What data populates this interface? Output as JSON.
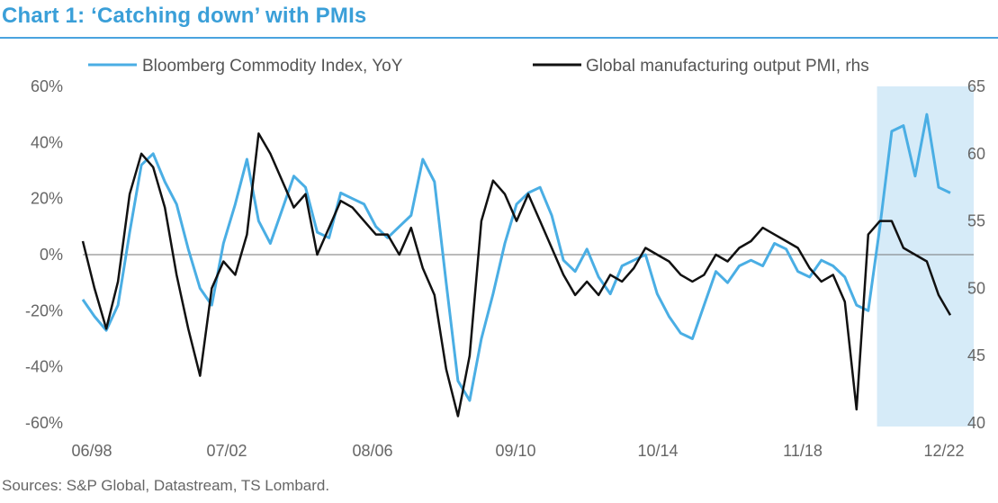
{
  "chart_data": {
    "type": "line",
    "title": "Chart 1: ‘Catching down’ with PMIs",
    "source": "Sources: S&P Global, Datastream, TS Lombard.",
    "x_tick_labels": [
      "06/98",
      "07/02",
      "08/06",
      "09/10",
      "10/14",
      "11/18",
      "12/22"
    ],
    "y_left": {
      "ticks": [
        "60%",
        "40%",
        "20%",
        "0%",
        "-20%",
        "-40%",
        "-60%"
      ],
      "range": [
        -60,
        60
      ]
    },
    "y_right": {
      "ticks": [
        "65",
        "60",
        "55",
        "50",
        "45",
        "40"
      ],
      "range": [
        40,
        65
      ]
    },
    "reference_line": 0,
    "shaded_region": {
      "from": "2021-01",
      "to": "2023-02",
      "color": "#d6ebf8"
    },
    "legend_position": "top",
    "series": [
      {
        "name": "Bloomberg Commodity Index, YoY",
        "axis": "left",
        "color": "#4aaee4",
        "x": [
          "1998-06",
          "1998-10",
          "1999-02",
          "1999-06",
          "1999-10",
          "2000-02",
          "2000-06",
          "2000-10",
          "2001-02",
          "2001-06",
          "2001-10",
          "2002-02",
          "2002-06",
          "2002-10",
          "2003-02",
          "2003-06",
          "2003-10",
          "2004-02",
          "2004-06",
          "2004-10",
          "2005-02",
          "2005-06",
          "2005-10",
          "2006-02",
          "2006-06",
          "2006-10",
          "2007-02",
          "2007-06",
          "2007-10",
          "2008-02",
          "2008-06",
          "2008-10",
          "2009-02",
          "2009-06",
          "2009-10",
          "2010-02",
          "2010-06",
          "2010-10",
          "2011-02",
          "2011-06",
          "2011-10",
          "2012-02",
          "2012-06",
          "2012-10",
          "2013-02",
          "2013-06",
          "2013-10",
          "2014-02",
          "2014-06",
          "2014-10",
          "2015-02",
          "2015-06",
          "2015-10",
          "2016-02",
          "2016-06",
          "2016-10",
          "2017-02",
          "2017-06",
          "2017-10",
          "2018-02",
          "2018-06",
          "2018-10",
          "2019-02",
          "2019-06",
          "2019-10",
          "2020-02",
          "2020-06",
          "2020-10",
          "2021-02",
          "2021-06",
          "2021-10",
          "2022-02",
          "2022-06",
          "2022-10",
          "2023-02"
        ],
        "values": [
          -16,
          -22,
          -27,
          -18,
          8,
          32,
          36,
          26,
          18,
          2,
          -12,
          -18,
          4,
          18,
          34,
          12,
          4,
          16,
          28,
          24,
          8,
          6,
          22,
          20,
          18,
          10,
          6,
          10,
          14,
          34,
          26,
          -10,
          -45,
          -52,
          -30,
          -14,
          4,
          18,
          22,
          24,
          14,
          -2,
          -6,
          2,
          -8,
          -14,
          -4,
          -2,
          0,
          -14,
          -22,
          -28,
          -30,
          -18,
          -6,
          -10,
          -4,
          -2,
          -4,
          4,
          2,
          -6,
          -8,
          -2,
          -4,
          -8,
          -18,
          -20,
          10,
          44,
          46,
          28,
          50,
          24,
          22
        ]
      },
      {
        "name": "Global manufacturing output PMI, rhs",
        "axis": "right",
        "color": "#111111",
        "x": [
          "1998-06",
          "1998-10",
          "1999-02",
          "1999-06",
          "1999-10",
          "2000-02",
          "2000-06",
          "2000-10",
          "2001-02",
          "2001-06",
          "2001-10",
          "2002-02",
          "2002-06",
          "2002-10",
          "2003-02",
          "2003-06",
          "2003-10",
          "2004-02",
          "2004-06",
          "2004-10",
          "2005-02",
          "2005-06",
          "2005-10",
          "2006-02",
          "2006-06",
          "2006-10",
          "2007-02",
          "2007-06",
          "2007-10",
          "2008-02",
          "2008-06",
          "2008-10",
          "2009-02",
          "2009-06",
          "2009-10",
          "2010-02",
          "2010-06",
          "2010-10",
          "2011-02",
          "2011-06",
          "2011-10",
          "2012-02",
          "2012-06",
          "2012-10",
          "2013-02",
          "2013-06",
          "2013-10",
          "2014-02",
          "2014-06",
          "2014-10",
          "2015-02",
          "2015-06",
          "2015-10",
          "2016-02",
          "2016-06",
          "2016-10",
          "2017-02",
          "2017-06",
          "2017-10",
          "2018-02",
          "2018-06",
          "2018-10",
          "2019-02",
          "2019-06",
          "2019-10",
          "2020-02",
          "2020-06",
          "2020-10",
          "2021-02",
          "2021-06",
          "2021-10",
          "2022-02",
          "2022-06",
          "2022-10",
          "2023-02"
        ],
        "values": [
          53.5,
          50,
          47,
          50.5,
          57,
          60,
          59,
          56,
          51,
          47,
          43.5,
          50,
          52,
          51,
          54,
          61.5,
          60,
          58,
          56,
          57,
          52.5,
          54.5,
          56.5,
          56,
          55,
          54,
          54,
          52.5,
          54.5,
          51.5,
          49.5,
          44,
          40.5,
          45,
          55,
          58,
          57,
          55,
          57,
          55,
          53,
          51,
          49.5,
          50.5,
          49.5,
          51,
          50.5,
          51.5,
          53,
          52.5,
          52,
          51,
          50.5,
          51,
          52.5,
          52,
          53,
          53.5,
          54.5,
          54,
          53.5,
          53,
          51.5,
          50.5,
          51,
          49,
          41,
          54,
          55,
          55,
          53,
          52.5,
          52,
          49.5,
          48
        ]
      }
    ]
  }
}
